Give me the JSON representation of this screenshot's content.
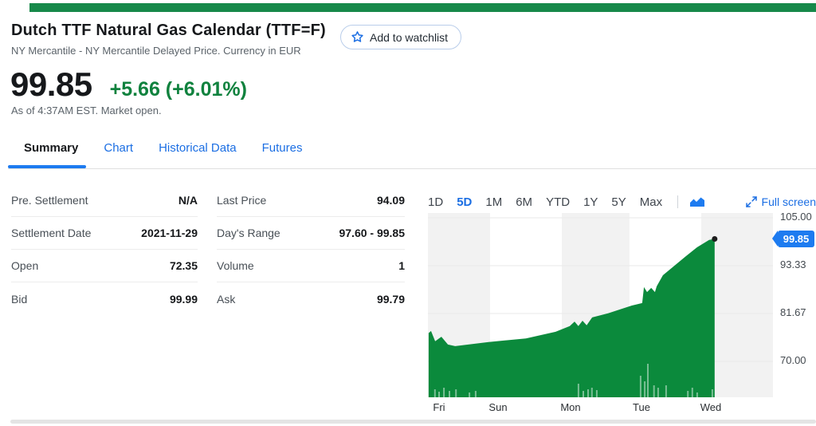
{
  "colors": {
    "topbar_green": "#17894a",
    "link_blue": "#1b6ee3",
    "up_green": "#10823e",
    "area_green": "#0b8a3c",
    "badge_blue": "#1d7bf0"
  },
  "header": {
    "title": "Dutch TTF Natural Gas Calendar (TTF=F)",
    "subtitle": "NY Mercantile - NY Mercantile Delayed Price. Currency in EUR",
    "watchlist_label": "Add to watchlist"
  },
  "quote": {
    "price": "99.85",
    "change": "+5.66 (+6.01%)",
    "as_of": "As of 4:37AM EST. Market open."
  },
  "tabs": {
    "items": [
      {
        "label": "Summary",
        "active": true
      },
      {
        "label": "Chart",
        "active": false
      },
      {
        "label": "Historical Data",
        "active": false
      },
      {
        "label": "Futures",
        "active": false
      }
    ]
  },
  "stats": {
    "left": [
      {
        "label": "Pre. Settlement",
        "value": "N/A"
      },
      {
        "label": "Settlement Date",
        "value": "2021-11-29"
      },
      {
        "label": "Open",
        "value": "72.35"
      },
      {
        "label": "Bid",
        "value": "99.99"
      }
    ],
    "right": [
      {
        "label": "Last Price",
        "value": "94.09"
      },
      {
        "label": "Day's Range",
        "value": "97.60 - 99.85"
      },
      {
        "label": "Volume",
        "value": "1"
      },
      {
        "label": "Ask",
        "value": "99.79"
      }
    ]
  },
  "toolbar": {
    "ranges": [
      "1D",
      "5D",
      "1M",
      "6M",
      "YTD",
      "1Y",
      "5Y",
      "Max"
    ],
    "selected": "5D",
    "full_screen": "Full screen"
  },
  "chart_data": {
    "type": "area",
    "title": "TTF=F 5-day price chart",
    "y_ticks": [
      105.0,
      93.33,
      81.67,
      70.0
    ],
    "y_tick_labels": [
      "105.00",
      "93.33",
      "81.67",
      "70.00"
    ],
    "x_tick_labels": [
      "Fri",
      "Sun",
      "Mon",
      "Tue",
      "Wed"
    ],
    "ylim": [
      61.3,
      105.0
    ],
    "grid": true,
    "legend": "none",
    "last_price": 99.85,
    "last_price_label": "99.85",
    "bands": [
      [
        0.0,
        0.18
      ],
      [
        0.388,
        0.584
      ],
      [
        0.792,
        1.0
      ]
    ],
    "line": [
      [
        0.002,
        76.9
      ],
      [
        0.009,
        77.4
      ],
      [
        0.021,
        74.9
      ],
      [
        0.039,
        76.0
      ],
      [
        0.058,
        74.1
      ],
      [
        0.079,
        73.7
      ],
      [
        0.176,
        74.7
      ],
      [
        0.284,
        75.6
      ],
      [
        0.37,
        77.2
      ],
      [
        0.411,
        78.6
      ],
      [
        0.425,
        79.7
      ],
      [
        0.436,
        78.6
      ],
      [
        0.448,
        79.9
      ],
      [
        0.46,
        78.8
      ],
      [
        0.476,
        80.7
      ],
      [
        0.522,
        81.7
      ],
      [
        0.591,
        83.6
      ],
      [
        0.621,
        84.2
      ],
      [
        0.626,
        88.1
      ],
      [
        0.635,
        86.9
      ],
      [
        0.647,
        87.9
      ],
      [
        0.658,
        86.9
      ],
      [
        0.663,
        88.3
      ],
      [
        0.681,
        91.0
      ],
      [
        0.711,
        93.1
      ],
      [
        0.746,
        95.5
      ],
      [
        0.78,
        97.8
      ],
      [
        0.815,
        99.6
      ],
      [
        0.831,
        99.85
      ]
    ],
    "volume_bars": [
      [
        0.018,
        10
      ],
      [
        0.03,
        7
      ],
      [
        0.044,
        12
      ],
      [
        0.06,
        8
      ],
      [
        0.079,
        10
      ],
      [
        0.118,
        6
      ],
      [
        0.136,
        8
      ],
      [
        0.434,
        17
      ],
      [
        0.448,
        8
      ],
      [
        0.462,
        10
      ],
      [
        0.473,
        12
      ],
      [
        0.487,
        9
      ],
      [
        0.614,
        27
      ],
      [
        0.626,
        20
      ],
      [
        0.635,
        42
      ],
      [
        0.653,
        15
      ],
      [
        0.665,
        12
      ],
      [
        0.688,
        15
      ],
      [
        0.751,
        8
      ],
      [
        0.764,
        12
      ],
      [
        0.778,
        6
      ],
      [
        0.822,
        10
      ]
    ]
  }
}
